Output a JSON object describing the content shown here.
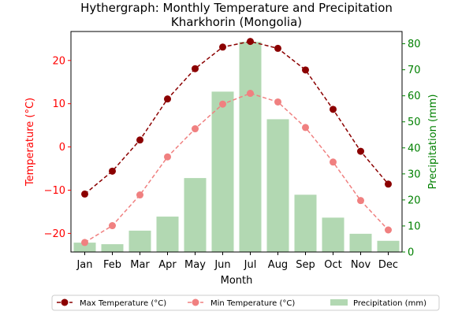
{
  "chart_data": {
    "type": "line+bar",
    "title": "Hythergraph: Monthly Temperature and Precipitation",
    "subtitle": "Kharkhorin (Mongolia)",
    "xlabel": "Month",
    "ylabel_left": "Temperature (°C)",
    "ylabel_right": "Precipitation (mm)",
    "categories": [
      "Jan",
      "Feb",
      "Mar",
      "Apr",
      "May",
      "Jun",
      "Jul",
      "Aug",
      "Sep",
      "Oct",
      "Nov",
      "Dec"
    ],
    "ylim_left": [
      -24.3,
      26.7
    ],
    "ylim_right": [
      0,
      84.7
    ],
    "yticks_left": [
      "−20",
      "−10",
      "0",
      "10",
      "20"
    ],
    "yticks_left_values": [
      -20,
      -10,
      0,
      10,
      20
    ],
    "yticks_right": [
      "0",
      "10",
      "20",
      "30",
      "40",
      "50",
      "60",
      "70",
      "80"
    ],
    "yticks_right_values": [
      0,
      10,
      20,
      30,
      40,
      50,
      60,
      70,
      80
    ],
    "series": [
      {
        "name": "Max Temperature (°C)",
        "kind": "line",
        "axis": "left",
        "color": "#8b0000",
        "values": [
          -10.9,
          -5.6,
          1.6,
          11.1,
          18.1,
          23.1,
          24.4,
          22.8,
          17.8,
          8.7,
          -1.0,
          -8.6
        ]
      },
      {
        "name": "Min Temperature (°C)",
        "kind": "line",
        "axis": "left",
        "color": "#f08080",
        "values": [
          -22.1,
          -18.2,
          -11.1,
          -2.3,
          4.2,
          9.9,
          12.4,
          10.4,
          4.5,
          -3.5,
          -12.4,
          -19.2
        ]
      },
      {
        "name": "Precipitation (mm)",
        "kind": "bar",
        "axis": "right",
        "color": "#b2d8b2",
        "values": [
          3.6,
          3.0,
          8.2,
          13.6,
          28.4,
          61.6,
          80.7,
          51.0,
          22.0,
          13.2,
          7.0,
          4.3
        ]
      }
    ],
    "legend_position": "bottom",
    "grid": false
  }
}
